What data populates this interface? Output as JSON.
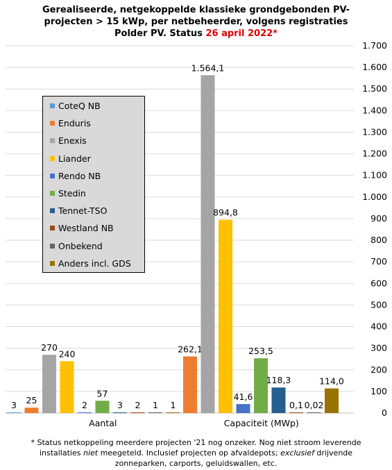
{
  "header": {
    "title_line1": "Gerealiseerde, netgekoppelde klassieke grondgebonden PV-",
    "title_line2": "projecten > 15 kWp, per netbeheerder, volgens registraties",
    "title_line3_prefix": "Polder PV. Status ",
    "title_line3_date": "26 april 2022*"
  },
  "footnote": {
    "line1": "* Status netkoppeling meerdere projecten '21 nog onzeker. Nog niet stroom leverende",
    "line2_a": "installaties ",
    "line2_em1": "niet",
    "line2_b": " meegeteld. Inclusief projecten op afvaldepots; ",
    "line2_em2": "exclusief",
    "line2_c": " drijvende",
    "line3": "zonneparken, carports, geluidswallen, etc."
  },
  "chart_data": {
    "type": "bar",
    "categories": [
      "Aantal",
      "Capaciteit (MWp)"
    ],
    "ylim": [
      0,
      1700
    ],
    "yticks": [
      0,
      100,
      200,
      300,
      400,
      500,
      600,
      700,
      800,
      900,
      1000,
      1100,
      1200,
      1300,
      1400,
      1500,
      1600,
      1700
    ],
    "ytick_labels": [
      "0",
      "100",
      "200",
      "300",
      "400",
      "500",
      "600",
      "700",
      "800",
      "900",
      "1.000",
      "1.100",
      "1.200",
      "1.300",
      "1.400",
      "1.500",
      "1.600",
      "1.700"
    ],
    "grid": true,
    "legend_position": "left",
    "series": [
      {
        "name": "CoteQ NB",
        "color": "#5b9bd5",
        "values": [
          3,
          null
        ],
        "labels": [
          "3",
          ""
        ]
      },
      {
        "name": "Enduris",
        "color": "#ed7d31",
        "values": [
          25,
          262.1
        ],
        "labels": [
          "25",
          "262,1"
        ]
      },
      {
        "name": "Enexis",
        "color": "#a5a5a5",
        "values": [
          270,
          1564.1
        ],
        "labels": [
          "270",
          "1.564,1"
        ]
      },
      {
        "name": "Liander",
        "color": "#ffc000",
        "values": [
          240,
          894.8
        ],
        "labels": [
          "240",
          "894,8"
        ]
      },
      {
        "name": "Rendo NB",
        "color": "#4472c4",
        "values": [
          2,
          41.6
        ],
        "labels": [
          "2",
          "41,6"
        ]
      },
      {
        "name": "Stedin",
        "color": "#70ad47",
        "values": [
          57,
          253.5
        ],
        "labels": [
          "57",
          "253,5"
        ]
      },
      {
        "name": "Tennet-TSO",
        "color": "#255e91",
        "values": [
          3,
          118.3
        ],
        "labels": [
          "3",
          "118,3"
        ]
      },
      {
        "name": "Westland NB",
        "color": "#9e480e",
        "values": [
          2,
          0.1
        ],
        "labels": [
          "2",
          "0,1"
        ]
      },
      {
        "name": "Onbekend",
        "color": "#636363",
        "values": [
          1,
          0.02
        ],
        "labels": [
          "1",
          "0,02"
        ]
      },
      {
        "name": "Anders incl. GDS",
        "color": "#997300",
        "values": [
          1,
          114.0
        ],
        "labels": [
          "1",
          "114,0"
        ]
      },
      {
        "name": "",
        "color": "#5b9bd5",
        "values": [
          1.0,
          null
        ],
        "labels": [
          "1,0",
          ""
        ]
      }
    ]
  }
}
